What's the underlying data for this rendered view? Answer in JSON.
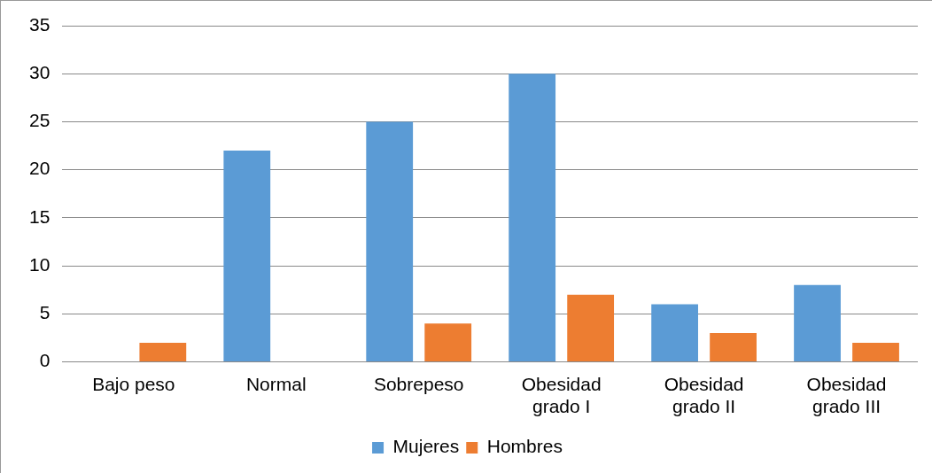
{
  "chart_data": {
    "type": "bar",
    "categories": [
      "Bajo peso",
      "Normal",
      "Sobrepeso",
      "Obesidad grado I",
      "Obesidad grado II",
      "Obesidad grado III"
    ],
    "series": [
      {
        "name": "Mujeres",
        "color": "#5b9bd5",
        "values": [
          0,
          22,
          25,
          30,
          6,
          8
        ]
      },
      {
        "name": "Hombres",
        "color": "#ed7d31",
        "values": [
          2,
          0,
          4,
          7,
          3,
          2
        ]
      }
    ],
    "ylim": [
      0,
      35
    ],
    "yticks": [
      0,
      5,
      10,
      15,
      20,
      25,
      30,
      35
    ],
    "grid": "y",
    "legend": "bottom"
  }
}
